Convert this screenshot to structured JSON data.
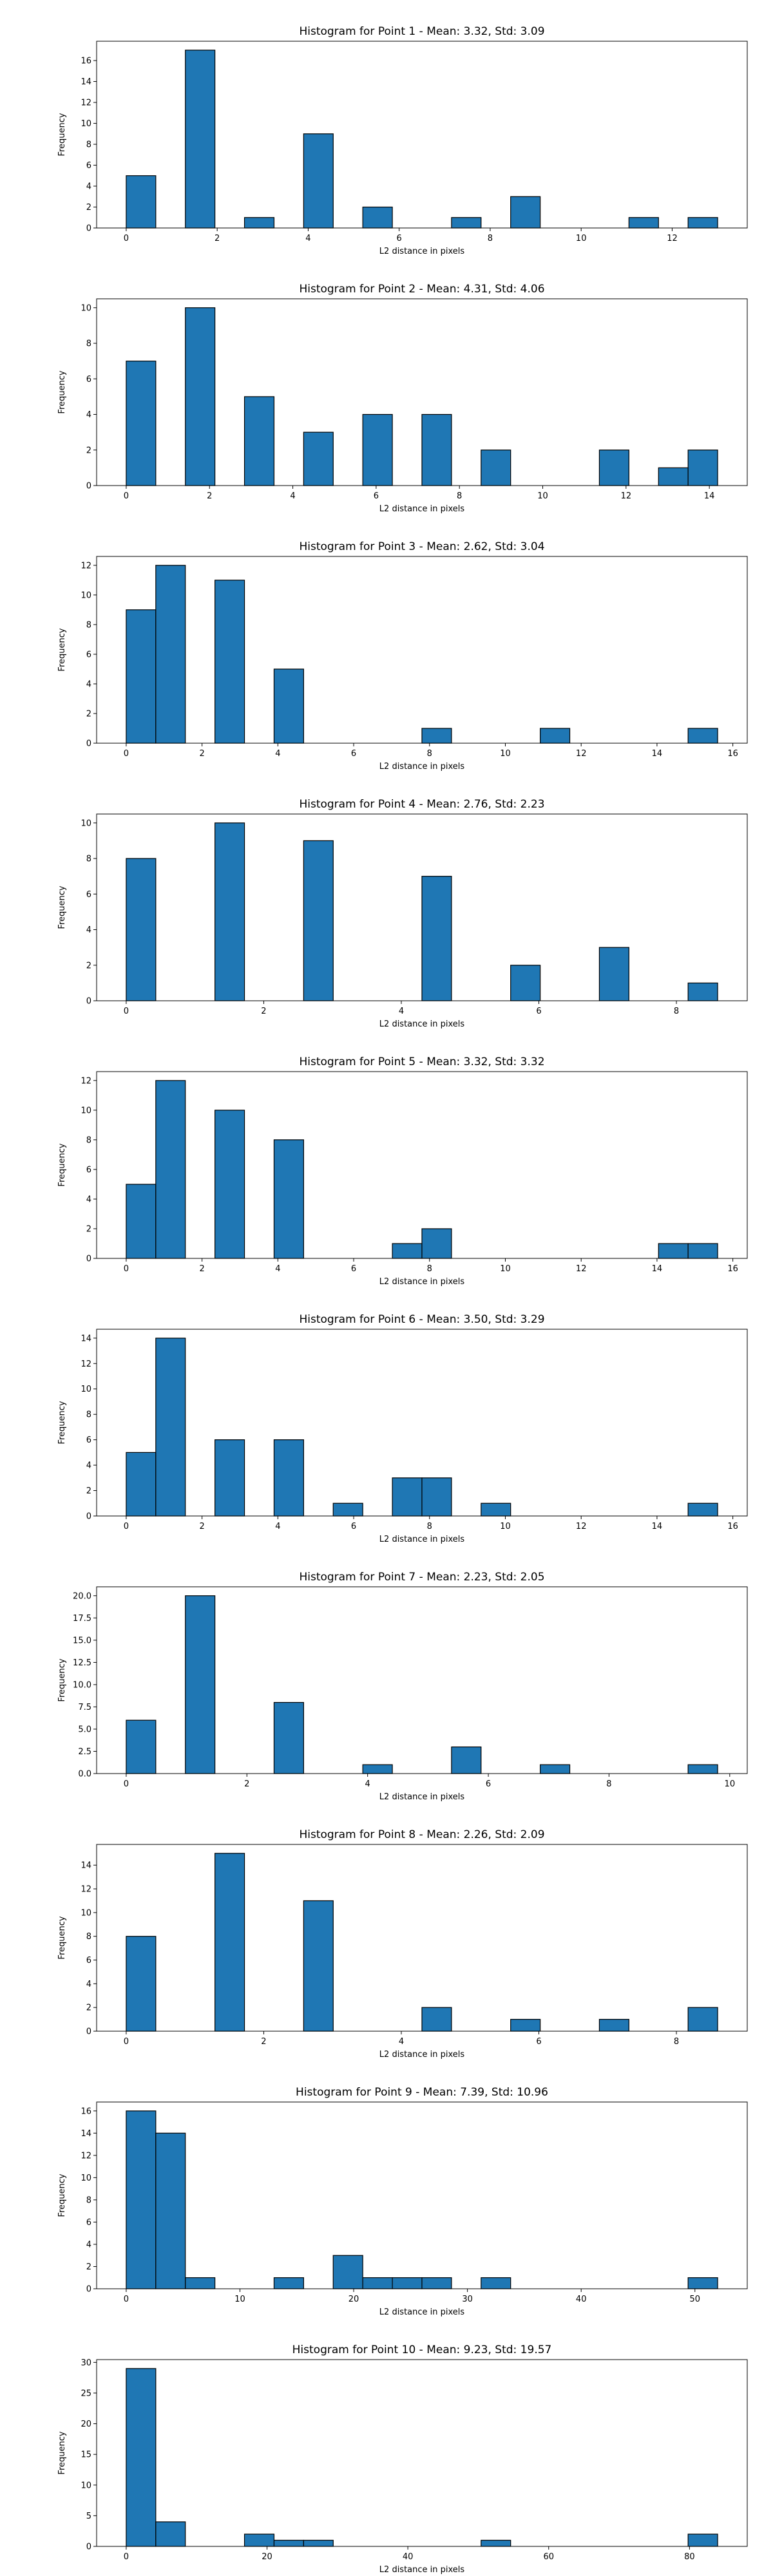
{
  "chart_data": [
    {
      "type": "histogram",
      "title": "Histogram for Point 1 - Mean: 3.32, Std: 3.09",
      "xlabel": "L2 distance in pixels",
      "ylabel": "Frequency",
      "xlim": [
        -0.65,
        13.65
      ],
      "ylim": [
        0,
        17.85
      ],
      "xticks": [
        0,
        2,
        4,
        6,
        8,
        10,
        12
      ],
      "yticks": [
        0,
        2,
        4,
        6,
        8,
        10,
        12,
        14,
        16
      ],
      "bin_width": 0.65,
      "bins": [
        {
          "x0": 0.0,
          "count": 5
        },
        {
          "x0": 1.3,
          "count": 17
        },
        {
          "x0": 2.6,
          "count": 1
        },
        {
          "x0": 3.9,
          "count": 9
        },
        {
          "x0": 5.2,
          "count": 2
        },
        {
          "x0": 7.15,
          "count": 1
        },
        {
          "x0": 8.45,
          "count": 3
        },
        {
          "x0": 11.05,
          "count": 1
        },
        {
          "x0": 12.35,
          "count": 1
        }
      ]
    },
    {
      "type": "histogram",
      "title": "Histogram for Point 2 - Mean: 4.31, Std: 4.06",
      "xlabel": "L2 distance in pixels",
      "ylabel": "Frequency",
      "xlim": [
        -0.71,
        14.91
      ],
      "ylim": [
        0,
        10.5
      ],
      "xticks": [
        0,
        2,
        4,
        6,
        8,
        10,
        12,
        14
      ],
      "yticks": [
        0,
        2,
        4,
        6,
        8,
        10
      ],
      "bin_width": 0.71,
      "bins": [
        {
          "x0": 0.0,
          "count": 7
        },
        {
          "x0": 1.42,
          "count": 10
        },
        {
          "x0": 2.84,
          "count": 5
        },
        {
          "x0": 4.26,
          "count": 3
        },
        {
          "x0": 5.68,
          "count": 4
        },
        {
          "x0": 7.1,
          "count": 4
        },
        {
          "x0": 8.52,
          "count": 2
        },
        {
          "x0": 11.36,
          "count": 2
        },
        {
          "x0": 12.78,
          "count": 1
        },
        {
          "x0": 13.49,
          "count": 2
        }
      ]
    },
    {
      "type": "histogram",
      "title": "Histogram for Point 3 - Mean: 2.62, Std: 3.04",
      "xlabel": "L2 distance in pixels",
      "ylabel": "Frequency",
      "xlim": [
        -0.78,
        16.38
      ],
      "ylim": [
        0,
        12.6
      ],
      "xticks": [
        0,
        2,
        4,
        6,
        8,
        10,
        12,
        14,
        16
      ],
      "yticks": [
        0,
        2,
        4,
        6,
        8,
        10,
        12
      ],
      "bin_width": 0.78,
      "bins": [
        {
          "x0": 0.0,
          "count": 9
        },
        {
          "x0": 0.78,
          "count": 12
        },
        {
          "x0": 2.34,
          "count": 11
        },
        {
          "x0": 3.9,
          "count": 5
        },
        {
          "x0": 7.8,
          "count": 1
        },
        {
          "x0": 10.92,
          "count": 1
        },
        {
          "x0": 14.82,
          "count": 1
        }
      ]
    },
    {
      "type": "histogram",
      "title": "Histogram for Point 4 - Mean: 2.76, Std: 2.23",
      "xlabel": "L2 distance in pixels",
      "ylabel": "Frequency",
      "xlim": [
        -0.43,
        9.03
      ],
      "ylim": [
        0,
        10.5
      ],
      "xticks": [
        0,
        2,
        4,
        6,
        8
      ],
      "yticks": [
        0,
        2,
        4,
        6,
        8,
        10
      ],
      "bin_width": 0.43,
      "bins": [
        {
          "x0": 0.0,
          "count": 8
        },
        {
          "x0": 1.29,
          "count": 10
        },
        {
          "x0": 2.58,
          "count": 9
        },
        {
          "x0": 4.3,
          "count": 7
        },
        {
          "x0": 5.59,
          "count": 2
        },
        {
          "x0": 6.88,
          "count": 3
        },
        {
          "x0": 8.17,
          "count": 1
        }
      ]
    },
    {
      "type": "histogram",
      "title": "Histogram for Point 5 - Mean: 3.32, Std: 3.32",
      "xlabel": "L2 distance in pixels",
      "ylabel": "Frequency",
      "xlim": [
        -0.78,
        16.38
      ],
      "ylim": [
        0,
        12.6
      ],
      "xticks": [
        0,
        2,
        4,
        6,
        8,
        10,
        12,
        14,
        16
      ],
      "yticks": [
        0,
        2,
        4,
        6,
        8,
        10,
        12
      ],
      "bin_width": 0.78,
      "bins": [
        {
          "x0": 0.0,
          "count": 5
        },
        {
          "x0": 0.78,
          "count": 12
        },
        {
          "x0": 2.34,
          "count": 10
        },
        {
          "x0": 3.9,
          "count": 8
        },
        {
          "x0": 7.02,
          "count": 1
        },
        {
          "x0": 7.8,
          "count": 2
        },
        {
          "x0": 14.04,
          "count": 1
        },
        {
          "x0": 14.82,
          "count": 1
        }
      ]
    },
    {
      "type": "histogram",
      "title": "Histogram for Point 6 - Mean: 3.50, Std: 3.29",
      "xlabel": "L2 distance in pixels",
      "ylabel": "Frequency",
      "xlim": [
        -0.78,
        16.38
      ],
      "ylim": [
        0,
        14.7
      ],
      "xticks": [
        0,
        2,
        4,
        6,
        8,
        10,
        12,
        14,
        16
      ],
      "yticks": [
        0,
        2,
        4,
        6,
        8,
        10,
        12,
        14
      ],
      "bin_width": 0.78,
      "bins": [
        {
          "x0": 0.0,
          "count": 5
        },
        {
          "x0": 0.78,
          "count": 14
        },
        {
          "x0": 2.34,
          "count": 6
        },
        {
          "x0": 3.9,
          "count": 6
        },
        {
          "x0": 5.46,
          "count": 1
        },
        {
          "x0": 7.02,
          "count": 3
        },
        {
          "x0": 7.8,
          "count": 3
        },
        {
          "x0": 9.36,
          "count": 1
        },
        {
          "x0": 14.82,
          "count": 1
        }
      ]
    },
    {
      "type": "histogram",
      "title": "Histogram for Point 7 - Mean: 2.23, Std: 2.05",
      "xlabel": "L2 distance in pixels",
      "ylabel": "Frequency",
      "xlim": [
        -0.49,
        10.29
      ],
      "ylim": [
        0,
        21.0
      ],
      "xticks": [
        0,
        2,
        4,
        6,
        8,
        10
      ],
      "yticks": [
        0.0,
        2.5,
        5.0,
        7.5,
        10.0,
        12.5,
        15.0,
        17.5,
        20.0
      ],
      "ytick_labels": [
        "0.0",
        "2.5",
        "5.0",
        "7.5",
        "10.0",
        "12.5",
        "15.0",
        "17.5",
        "20.0"
      ],
      "bin_width": 0.49,
      "bins": [
        {
          "x0": 0.0,
          "count": 6
        },
        {
          "x0": 0.98,
          "count": 20
        },
        {
          "x0": 2.45,
          "count": 8
        },
        {
          "x0": 3.92,
          "count": 1
        },
        {
          "x0": 5.39,
          "count": 3
        },
        {
          "x0": 6.86,
          "count": 1
        },
        {
          "x0": 9.31,
          "count": 1
        }
      ]
    },
    {
      "type": "histogram",
      "title": "Histogram for Point 8 - Mean: 2.26, Std: 2.09",
      "xlabel": "L2 distance in pixels",
      "ylabel": "Frequency",
      "xlim": [
        -0.43,
        9.03
      ],
      "ylim": [
        0,
        15.75
      ],
      "xticks": [
        0,
        2,
        4,
        6,
        8
      ],
      "yticks": [
        0,
        2,
        4,
        6,
        8,
        10,
        12,
        14
      ],
      "bin_width": 0.43,
      "bins": [
        {
          "x0": 0.0,
          "count": 8
        },
        {
          "x0": 1.29,
          "count": 15
        },
        {
          "x0": 2.58,
          "count": 11
        },
        {
          "x0": 4.3,
          "count": 2
        },
        {
          "x0": 5.59,
          "count": 1
        },
        {
          "x0": 6.88,
          "count": 1
        },
        {
          "x0": 8.17,
          "count": 2
        }
      ]
    },
    {
      "type": "histogram",
      "title": "Histogram for Point 9 - Mean: 7.39, Std: 10.96",
      "xlabel": "L2 distance in pixels",
      "ylabel": "Frequency",
      "xlim": [
        -2.6,
        54.6
      ],
      "ylim": [
        0,
        16.8
      ],
      "xticks": [
        0,
        10,
        20,
        30,
        40,
        50
      ],
      "yticks": [
        0,
        2,
        4,
        6,
        8,
        10,
        12,
        14,
        16
      ],
      "bin_width": 2.6,
      "bins": [
        {
          "x0": 0.0,
          "count": 16
        },
        {
          "x0": 2.6,
          "count": 14
        },
        {
          "x0": 5.2,
          "count": 1
        },
        {
          "x0": 13.0,
          "count": 1
        },
        {
          "x0": 18.2,
          "count": 3
        },
        {
          "x0": 20.8,
          "count": 1
        },
        {
          "x0": 23.4,
          "count": 1
        },
        {
          "x0": 26.0,
          "count": 1
        },
        {
          "x0": 31.2,
          "count": 1
        },
        {
          "x0": 49.4,
          "count": 1
        }
      ]
    },
    {
      "type": "histogram",
      "title": "Histogram for Point 10 - Mean: 9.23, Std: 19.57",
      "xlabel": "L2 distance in pixels",
      "ylabel": "Frequency",
      "xlim": [
        -4.2,
        88.2
      ],
      "ylim": [
        0,
        30.45
      ],
      "xticks": [
        0,
        20,
        40,
        60,
        80
      ],
      "yticks": [
        0,
        5,
        10,
        15,
        20,
        25,
        30
      ],
      "bin_width": 4.2,
      "bins": [
        {
          "x0": 0.0,
          "count": 29
        },
        {
          "x0": 4.2,
          "count": 4
        },
        {
          "x0": 16.8,
          "count": 2
        },
        {
          "x0": 21.0,
          "count": 1
        },
        {
          "x0": 25.2,
          "count": 1
        },
        {
          "x0": 50.4,
          "count": 1
        },
        {
          "x0": 79.8,
          "count": 2
        }
      ]
    }
  ]
}
